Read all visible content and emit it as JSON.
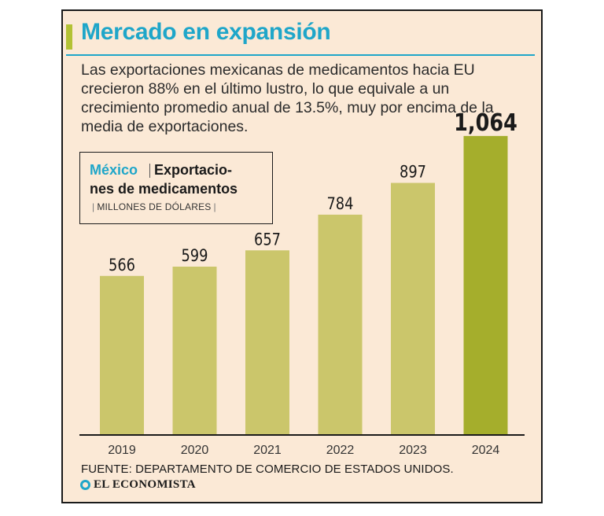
{
  "header": {
    "title": "Mercado en expansión",
    "subtitle": "Las exportaciones mexicanas de medicamentos hacia EU crecieron 88% en el último lustro, lo que equivale a un crecimiento promedio anual de 13.5%, muy por encima de la media de exportaciones."
  },
  "legend": {
    "country": "México",
    "line1": "Exportacio-",
    "line2": "nes de medicamentos",
    "units": "MILLONES DE DÓLARES"
  },
  "chart_data": {
    "type": "bar",
    "categories": [
      "2019",
      "2020",
      "2021",
      "2022",
      "2023",
      "2024"
    ],
    "values": [
      566,
      599,
      657,
      784,
      897,
      1064
    ],
    "value_labels": [
      "566",
      "599",
      "657",
      "784",
      "897",
      "1,064"
    ],
    "ylim": [
      0,
      1100
    ],
    "grid": false,
    "colors": {
      "bar": "#cbc66b",
      "highlight_bar": "#a5ae2c",
      "axis": "#1a1a1a"
    },
    "highlight_index": 5
  },
  "footer": {
    "source": "FUENTE: DEPARTAMENTO DE COMERCIO DE ESTADOS UNIDOS.",
    "brand": "EL ECONOMISTA"
  },
  "colors": {
    "title": "#1fa6c9",
    "accent": "#b3c234",
    "background": "#fbe9d6"
  }
}
